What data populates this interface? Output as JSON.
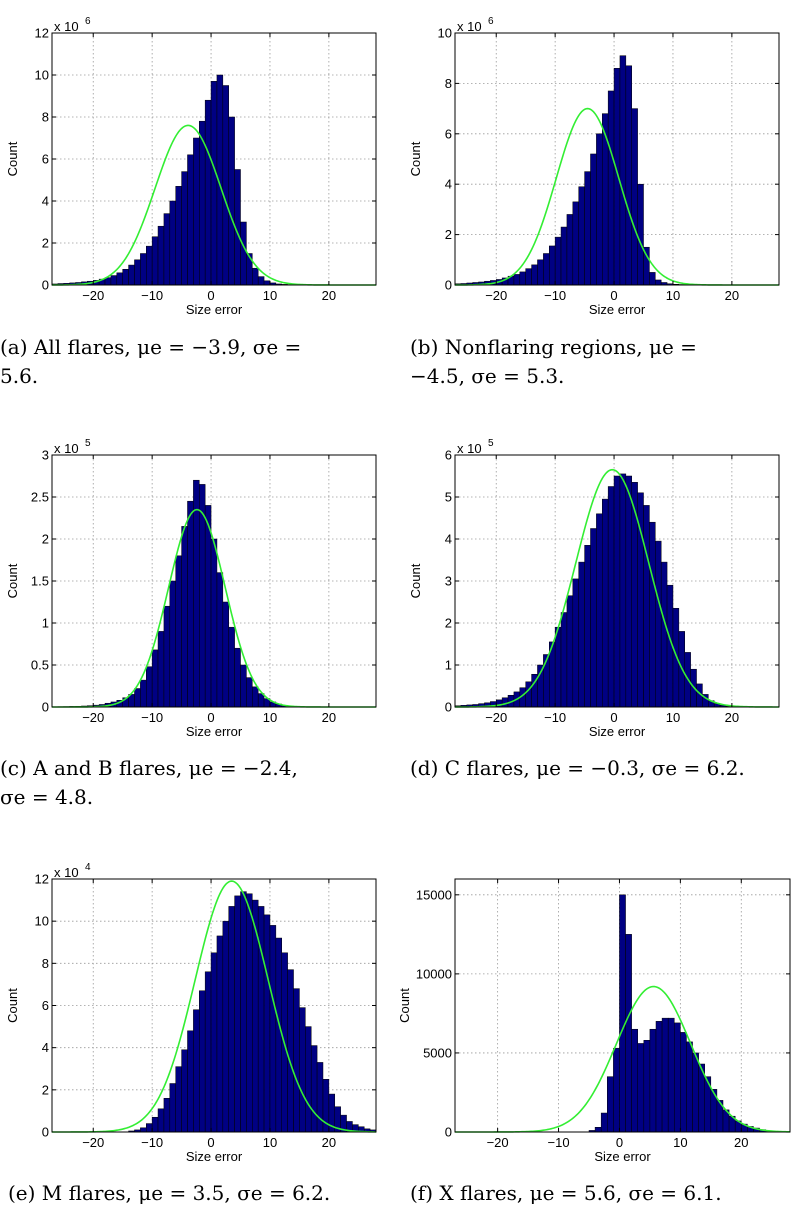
{
  "chart_data": [
    {
      "type": "bar",
      "panel": "a",
      "caption": "(a) All flares, μe = −3.9, σe = 5.6.",
      "xlabel": "Size error",
      "ylabel": "Count",
      "y_multiplier": "x 10",
      "y_exponent": "6",
      "xlim": [
        -27,
        28
      ],
      "ylim": [
        0,
        12
      ],
      "xticks": [
        -20,
        -10,
        0,
        10,
        20
      ],
      "xtick_labels": [
        "−20",
        "−10",
        "0",
        "10",
        "20"
      ],
      "yticks": [
        0,
        2,
        4,
        6,
        8,
        10,
        12
      ],
      "ytick_labels": [
        "0",
        "2",
        "4",
        "6",
        "8",
        "10",
        "12"
      ],
      "bin_start": -27,
      "bin_width": 1,
      "counts": [
        0.05,
        0.07,
        0.08,
        0.1,
        0.12,
        0.15,
        0.18,
        0.22,
        0.28,
        0.35,
        0.45,
        0.58,
        0.75,
        0.95,
        1.2,
        1.5,
        1.85,
        2.3,
        2.8,
        3.4,
        4.0,
        4.7,
        5.4,
        6.2,
        7.0,
        7.8,
        8.8,
        9.7,
        10.0,
        9.5,
        8.0,
        5.5,
        3.0,
        1.5,
        0.8,
        0.4,
        0.2,
        0.1,
        0.05,
        0.03,
        0.02,
        0.01
      ],
      "fit": {
        "mu": -3.9,
        "sigma": 5.6,
        "peak": 7.6
      },
      "grid": true
    },
    {
      "type": "bar",
      "panel": "b",
      "caption": "(b) Nonflaring regions, μe = −4.5, σe = 5.3.",
      "xlabel": "Size error",
      "ylabel": "Count",
      "y_multiplier": "x 10",
      "y_exponent": "6",
      "xlim": [
        -27,
        28
      ],
      "ylim": [
        0,
        10
      ],
      "xticks": [
        -20,
        -10,
        0,
        10,
        20
      ],
      "xtick_labels": [
        "−20",
        "−10",
        "0",
        "10",
        "20"
      ],
      "yticks": [
        0,
        2,
        4,
        6,
        8,
        10
      ],
      "ytick_labels": [
        "0",
        "2",
        "4",
        "6",
        "8",
        "10"
      ],
      "bin_start": -27,
      "bin_width": 1,
      "counts": [
        0.05,
        0.06,
        0.08,
        0.1,
        0.12,
        0.15,
        0.18,
        0.22,
        0.28,
        0.35,
        0.42,
        0.52,
        0.65,
        0.8,
        1.0,
        1.25,
        1.55,
        1.9,
        2.3,
        2.8,
        3.3,
        3.9,
        4.5,
        5.2,
        6.0,
        6.8,
        7.7,
        8.6,
        9.1,
        8.7,
        7.0,
        4.0,
        1.5,
        0.5,
        0.2,
        0.1,
        0.05,
        0.03,
        0.02,
        0.01
      ],
      "fit": {
        "mu": -4.5,
        "sigma": 5.3,
        "peak": 7.0
      },
      "grid": true
    },
    {
      "type": "bar",
      "panel": "c",
      "caption": "(c) A and B flares, μe = −2.4, σe = 4.8.",
      "xlabel": "Size error",
      "ylabel": "Count",
      "y_multiplier": "x 10",
      "y_exponent": "5",
      "xlim": [
        -27,
        28
      ],
      "ylim": [
        0,
        3
      ],
      "xticks": [
        -20,
        -10,
        0,
        10,
        20
      ],
      "xtick_labels": [
        "−20",
        "−10",
        "0",
        "10",
        "20"
      ],
      "yticks": [
        0,
        0.5,
        1,
        1.5,
        2,
        2.5,
        3
      ],
      "ytick_labels": [
        "0",
        "0.5",
        "1",
        "1.5",
        "2",
        "2.5",
        "3"
      ],
      "bin_start": -27,
      "bin_width": 1,
      "counts": [
        0.003,
        0.004,
        0.005,
        0.007,
        0.009,
        0.012,
        0.016,
        0.022,
        0.03,
        0.045,
        0.06,
        0.08,
        0.11,
        0.15,
        0.22,
        0.32,
        0.48,
        0.68,
        0.9,
        1.2,
        1.5,
        1.8,
        2.15,
        2.45,
        2.7,
        2.65,
        2.4,
        2.0,
        1.6,
        1.25,
        0.95,
        0.7,
        0.5,
        0.35,
        0.24,
        0.16,
        0.1,
        0.06,
        0.035,
        0.02,
        0.01,
        0.006,
        0.004
      ],
      "fit": {
        "mu": -2.4,
        "sigma": 4.8,
        "peak": 2.35
      },
      "grid": true
    },
    {
      "type": "bar",
      "panel": "d",
      "caption": "(d) C flares, μe = −0.3, σe = 6.2.",
      "xlabel": "Size error",
      "ylabel": "Count",
      "y_multiplier": "x 10",
      "y_exponent": "5",
      "xlim": [
        -27,
        28
      ],
      "ylim": [
        0,
        6
      ],
      "xticks": [
        -20,
        -10,
        0,
        10,
        20
      ],
      "xtick_labels": [
        "−20",
        "−10",
        "0",
        "10",
        "20"
      ],
      "yticks": [
        0,
        1,
        2,
        3,
        4,
        5,
        6
      ],
      "ytick_labels": [
        "0",
        "1",
        "2",
        "3",
        "4",
        "5",
        "6"
      ],
      "bin_start": -27,
      "bin_width": 1,
      "counts": [
        0.03,
        0.04,
        0.05,
        0.06,
        0.08,
        0.1,
        0.13,
        0.17,
        0.22,
        0.28,
        0.36,
        0.46,
        0.6,
        0.78,
        1.0,
        1.25,
        1.55,
        1.9,
        2.25,
        2.65,
        3.05,
        3.45,
        3.85,
        4.25,
        4.6,
        4.95,
        5.25,
        5.5,
        5.55,
        5.5,
        5.35,
        5.1,
        4.8,
        4.4,
        3.95,
        3.45,
        2.9,
        2.35,
        1.8,
        1.3,
        0.9,
        0.55,
        0.3,
        0.15,
        0.08,
        0.04,
        0.02,
        0.01
      ],
      "fit": {
        "mu": -0.3,
        "sigma": 6.2,
        "peak": 5.65
      },
      "grid": true
    },
    {
      "type": "bar",
      "panel": "e",
      "caption": "(e) M flares, μe = 3.5, σe = 6.2.",
      "xlabel": "Size error",
      "ylabel": "Count",
      "y_multiplier": "x 10",
      "y_exponent": "4",
      "xlim": [
        -27,
        28
      ],
      "ylim": [
        0,
        12
      ],
      "xticks": [
        -20,
        -10,
        0,
        10,
        20
      ],
      "xtick_labels": [
        "−20",
        "−10",
        "0",
        "10",
        "20"
      ],
      "yticks": [
        0,
        2,
        4,
        6,
        8,
        10,
        12
      ],
      "ytick_labels": [
        "0",
        "2",
        "4",
        "6",
        "8",
        "10",
        "12"
      ],
      "bin_start": -14,
      "bin_width": 1,
      "counts": [
        0.05,
        0.1,
        0.2,
        0.4,
        0.7,
        1.1,
        1.6,
        2.3,
        3.1,
        3.9,
        4.8,
        5.8,
        6.7,
        7.6,
        8.5,
        9.3,
        10.0,
        10.7,
        11.2,
        11.4,
        11.3,
        11.0,
        10.7,
        10.3,
        9.8,
        9.2,
        8.5,
        7.7,
        6.8,
        5.9,
        5.0,
        4.1,
        3.3,
        2.5,
        1.8,
        1.2,
        0.8,
        0.5,
        0.35,
        0.25,
        0.15,
        0.1,
        0.05
      ],
      "fit": {
        "mu": 3.5,
        "sigma": 6.2,
        "peak": 11.9
      },
      "grid": true
    },
    {
      "type": "bar",
      "panel": "f",
      "caption": "(f) X flares, μe = 5.6, σe = 6.1.",
      "xlabel": "Size error",
      "ylabel": "Count",
      "y_multiplier": "",
      "y_exponent": "",
      "xlim": [
        -27,
        28
      ],
      "ylim": [
        0,
        16000
      ],
      "xticks": [
        -20,
        -10,
        0,
        10,
        20
      ],
      "xtick_labels": [
        "−20",
        "−10",
        "0",
        "10",
        "20"
      ],
      "yticks": [
        0,
        5000,
        10000,
        15000
      ],
      "ytick_labels": [
        "0",
        "5000",
        "10000",
        "15000"
      ],
      "bin_start": -5,
      "bin_width": 1,
      "counts": [
        100,
        300,
        1200,
        3500,
        5300,
        15000,
        12500,
        6500,
        5600,
        5800,
        6500,
        7000,
        7200,
        7200,
        6900,
        6300,
        5700,
        5000,
        4300,
        3500,
        2700,
        2000,
        1400,
        1000,
        700,
        500,
        350,
        250,
        150,
        80,
        40
      ],
      "fit": {
        "mu": 5.6,
        "sigma": 6.1,
        "peak": 9200
      },
      "grid": true
    }
  ]
}
